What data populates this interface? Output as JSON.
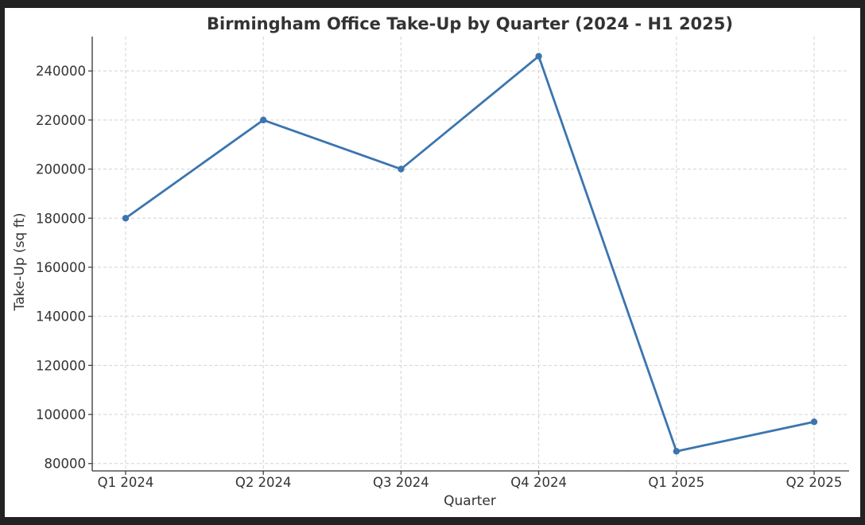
{
  "chart_data": {
    "type": "line",
    "title": "Birmingham Office Take-Up by Quarter (2024 - H1 2025)",
    "xlabel": "Quarter",
    "ylabel": "Take-Up (sq ft)",
    "categories": [
      "Q1 2024",
      "Q2 2024",
      "Q3 2024",
      "Q4 2024",
      "Q1 2025",
      "Q2 2025"
    ],
    "series": [
      {
        "values": [
          180000,
          220000,
          200000,
          246000,
          85000,
          97000
        ],
        "color": "#3b75af",
        "marker": "circle"
      }
    ],
    "yticks": [
      80000,
      100000,
      120000,
      140000,
      160000,
      180000,
      200000,
      220000,
      240000
    ],
    "ylim": [
      77000,
      254000
    ],
    "grid": true,
    "legend": "none"
  }
}
